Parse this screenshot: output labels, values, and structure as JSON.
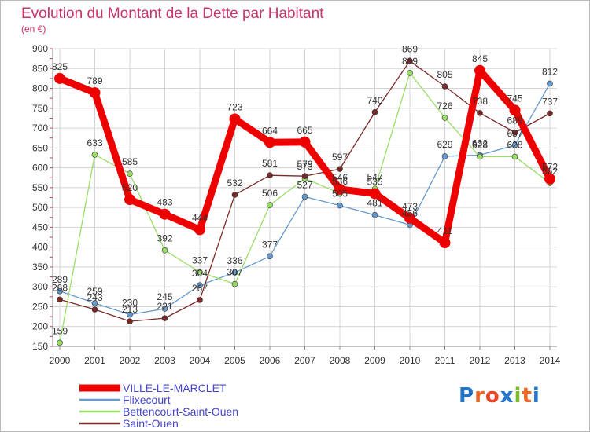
{
  "chart_data": {
    "type": "line",
    "title": "Evolution du Montant de la Dette par Habitant",
    "subtitle": "(en €)",
    "xlabel": "",
    "ylabel": "",
    "x": [
      "2000",
      "2001",
      "2002",
      "2003",
      "2004",
      "2005",
      "2006",
      "2007",
      "2008",
      "2009",
      "2010",
      "2011",
      "2012",
      "2013",
      "2014"
    ],
    "ylim": [
      150,
      900
    ],
    "yticks": [
      150,
      200,
      250,
      300,
      350,
      400,
      450,
      500,
      550,
      600,
      650,
      700,
      750,
      800,
      850,
      900
    ],
    "grid": true,
    "legend_position": "bottom-left",
    "series": [
      {
        "name": "VILLE-LE-MARCLET",
        "color": "#ee0000",
        "values": [
          825,
          789,
          520,
          483,
          444,
          723,
          664,
          665,
          546,
          535,
          473,
          411,
          845,
          745,
          572
        ]
      },
      {
        "name": "Flixecourt",
        "color": "#6699cc",
        "values": [
          289,
          259,
          230,
          245,
          304,
          336,
          377,
          527,
          505,
          481,
          456,
          629,
          632,
          657,
          812
        ]
      },
      {
        "name": "Bettencourt-Saint-Ouen",
        "color": "#99dd66",
        "values": [
          159,
          633,
          585,
          392,
          337,
          307,
          506,
          573,
          536,
          547,
          839,
          726,
          628,
          628,
          562
        ]
      },
      {
        "name": "Saint-Ouen",
        "color": "#7a2a2a",
        "values": [
          268,
          243,
          213,
          221,
          267,
          532,
          581,
          579,
          597,
          740,
          869,
          805,
          738,
          689,
          737
        ]
      }
    ]
  },
  "logo": {
    "text": "Proxiti",
    "letter_colors": [
      "#2277cc",
      "#ee6622",
      "#ee4422",
      "#2277cc",
      "#77bb22",
      "#ee6622",
      "#2277cc"
    ]
  }
}
